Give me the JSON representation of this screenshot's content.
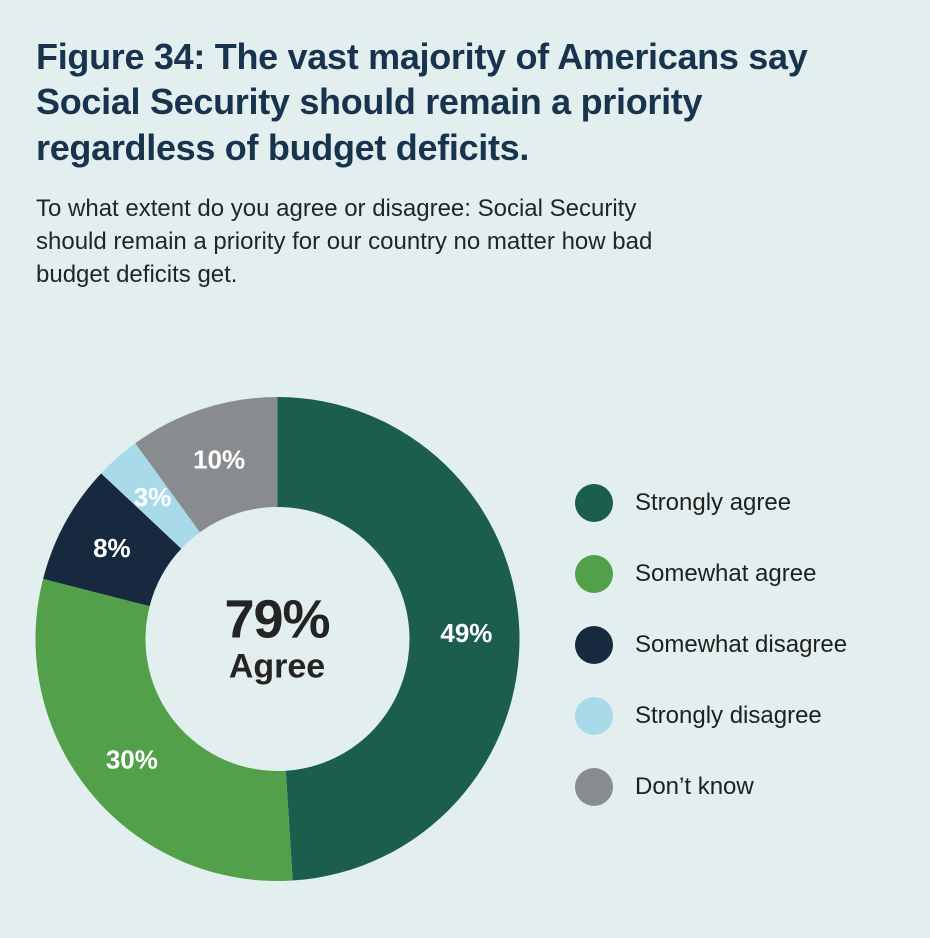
{
  "page": {
    "background_color": "#e2efee",
    "title_color": "#17334e"
  },
  "header": {
    "title_prefix": "Figure 34:",
    "title_rest": "The vast majority of Americans say Social Security should remain a priority regardless of budget deficits.",
    "subtitle": "To what extent do you agree or disagree: Social Security should remain a priority for our country no matter how bad budget deficits get."
  },
  "chart_data": {
    "type": "pie",
    "variant": "donut",
    "title": "Figure 34: The vast majority of Americans say Social Security should remain a priority regardless of budget deficits.",
    "subtitle": "To what extent do you agree or disagree: Social Security should remain a priority for our country no matter how bad budget deficits get.",
    "direction": "clockwise",
    "start_angle_deg": 0,
    "legend_position": "right",
    "center_label": {
      "value": "79%",
      "caption": "Agree"
    },
    "slices": [
      {
        "label": "Strongly agree",
        "value": 49,
        "data_label": "49%",
        "color": "#1c5e4e"
      },
      {
        "label": "Somewhat agree",
        "value": 30,
        "data_label": "30%",
        "color": "#52a04a"
      },
      {
        "label": "Somewhat disagree",
        "value": 8,
        "data_label": "8%",
        "color": "#16293f"
      },
      {
        "label": "Strongly disagree",
        "value": 3,
        "data_label": "3%",
        "color": "#a9dae9"
      },
      {
        "label": "Don’t know",
        "value": 10,
        "data_label": "10%",
        "color": "#898c8e"
      }
    ],
    "data_label_color": "#ffffff"
  }
}
